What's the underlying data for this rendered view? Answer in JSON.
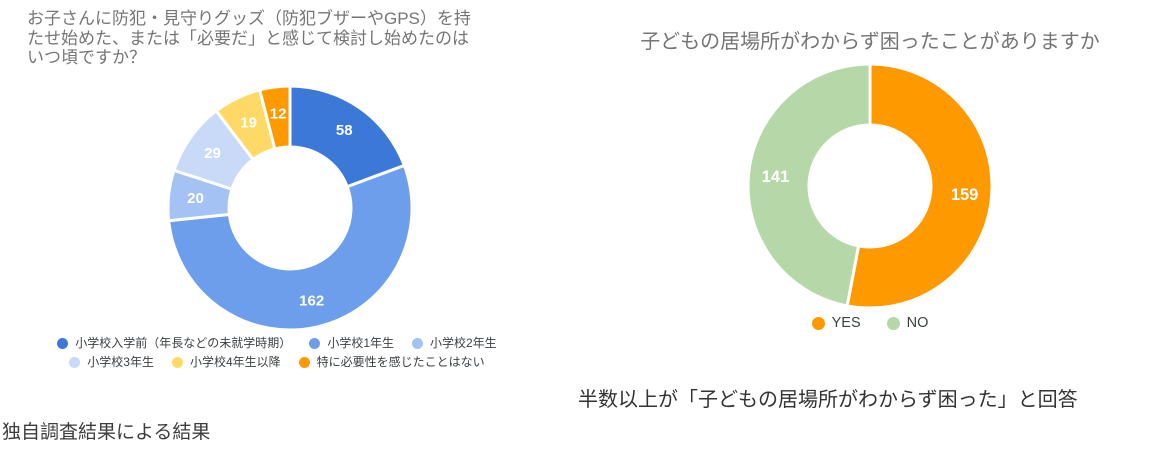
{
  "page": {
    "background": "#ffffff",
    "footer_note": "独自調査結果による結果"
  },
  "chart_data": [
    {
      "type": "pie",
      "subtype": "donut",
      "title": "お子さんに防犯・見守りグッズ（防犯ブザーやGPS）を持たせ始めた、または「必要だ」と感じて検討し始めたのはいつ頃ですか？",
      "title_lines": [
        "お子さんに防犯・見守りグッズ（防犯ブザーやGPS）を持",
        "たせ始めた、または「必要だ」と感じて検討し始めたのは",
        "いつ頃ですか？"
      ],
      "title_color": "#757575",
      "labels": [
        "小学校入学前（年長などの未就学時期）",
        "小学校1年生",
        "小学校2年生",
        "小学校3年生",
        "小学校4年生以降",
        "特に必要性を感じたことはない"
      ],
      "values": [
        58,
        162,
        20,
        29,
        19,
        12
      ],
      "total": 300,
      "colors": [
        "#3c78d8",
        "#6d9eeb",
        "#a4c2f4",
        "#c9daf8",
        "#ffd966",
        "#ff9900"
      ],
      "slice_label_color": "#ffffff",
      "start_angle": "12-oclock",
      "direction": "clockwise",
      "legend_position": "bottom"
    },
    {
      "type": "pie",
      "subtype": "donut",
      "title": "子どもの居場所がわからず困ったことがありますか",
      "title_color": "#757575",
      "labels": [
        "YES",
        "NO"
      ],
      "values": [
        159,
        141
      ],
      "total": 300,
      "colors": [
        "#ff9900",
        "#b6d7a8"
      ],
      "slice_label_color": "#ffffff",
      "start_angle": "12-oclock",
      "direction": "clockwise",
      "legend_position": "bottom",
      "caption": "半数以上が「子どもの居場所がわからず困った」と回答"
    }
  ]
}
